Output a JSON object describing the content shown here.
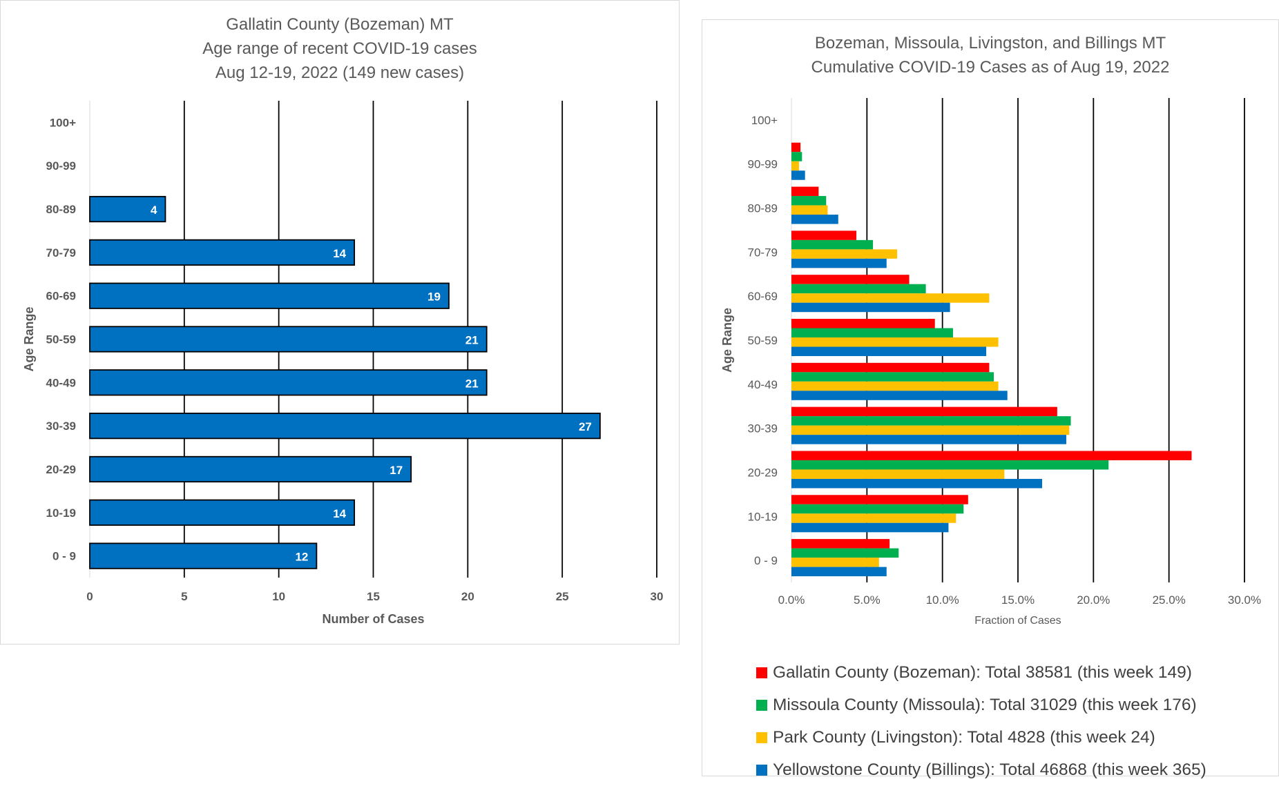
{
  "chart_data": [
    {
      "type": "bar",
      "orientation": "horizontal",
      "title": [
        "Gallatin County (Bozeman) MT",
        "Age range of recent COVID-19 cases",
        "Aug 12-19, 2022 (149 new cases)"
      ],
      "xlabel": "Number of Cases",
      "ylabel": "Age Range",
      "categories": [
        "0 - 9",
        "10-19",
        "20-29",
        "30-39",
        "40-49",
        "50-59",
        "60-69",
        "70-79",
        "80-89",
        "90-99",
        "100+"
      ],
      "values": [
        12,
        14,
        17,
        27,
        21,
        21,
        19,
        14,
        4,
        null,
        null
      ],
      "data_labels": [
        "12",
        "14",
        "17",
        "27",
        "21",
        "21",
        "19",
        "14",
        "4",
        "",
        ""
      ],
      "xlim": [
        0,
        30
      ],
      "xticks": [
        "0",
        "5",
        "10",
        "15",
        "20",
        "25",
        "30"
      ],
      "grid": "vertical",
      "bar_color": "#0070C0"
    },
    {
      "type": "bar",
      "orientation": "horizontal",
      "title": [
        "Bozeman, Missoula, Livingston, and Billings MT",
        "Cumulative COVID-19 Cases as of Aug 19, 2022"
      ],
      "xlabel": "Fraction of Cases",
      "ylabel": "Age Range",
      "categories": [
        "0 - 9",
        "10-19",
        "20-29",
        "30-39",
        "40-49",
        "50-59",
        "60-69",
        "70-79",
        "80-89",
        "90-99",
        "100+"
      ],
      "xlim": [
        0,
        30
      ],
      "xticks": [
        "0.0%",
        "5.0%",
        "10.0%",
        "15.0%",
        "20.0%",
        "25.0%",
        "30.0%"
      ],
      "grid": "vertical",
      "legend_position": "bottom",
      "series": [
        {
          "name": "Gallatin County (Bozeman): Total 38581 (this week 149)",
          "color": "#FF0000",
          "values": [
            6.5,
            11.7,
            26.5,
            17.6,
            13.1,
            9.5,
            7.8,
            4.3,
            1.8,
            0.6,
            0.0
          ]
        },
        {
          "name": "Missoula County (Missoula): Total 31029 (this week 176)",
          "color": "#00B050",
          "values": [
            7.1,
            11.4,
            21.0,
            18.5,
            13.4,
            10.7,
            8.9,
            5.4,
            2.3,
            0.7,
            0.0
          ]
        },
        {
          "name": "Park County (Livingston): Total 4828 (this week 24)",
          "color": "#FFC000",
          "values": [
            5.8,
            10.9,
            14.1,
            18.4,
            13.7,
            13.7,
            13.1,
            7.0,
            2.4,
            0.5,
            0.0
          ]
        },
        {
          "name": "Yellowstone County (Billings): Total 46868 (this week 365)",
          "color": "#0070C0",
          "values": [
            6.3,
            10.4,
            16.6,
            18.2,
            14.3,
            12.9,
            10.5,
            6.3,
            3.1,
            0.9,
            0.0
          ]
        }
      ]
    }
  ]
}
